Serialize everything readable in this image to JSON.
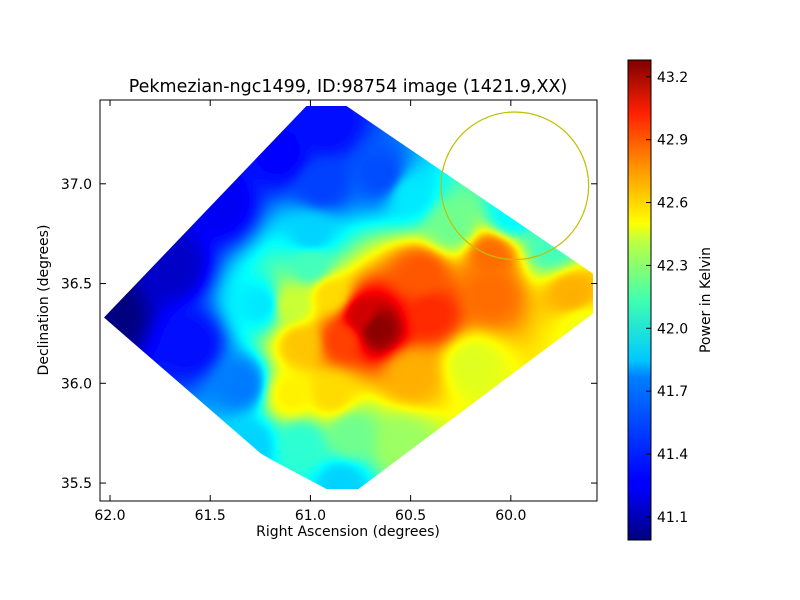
{
  "chart_data": {
    "type": "heatmap",
    "title": "Pekmezian-ngc1499, ID:98754 image (1421.9,XX)",
    "xlabel": "Right Ascension (degrees)",
    "ylabel": "Declination (degrees)",
    "colorbar_label": "Power in Kelvin",
    "colormap": "jet",
    "xlim": [
      62.05,
      59.57
    ],
    "ylim": [
      35.41,
      37.42
    ],
    "x_ticks": [
      {
        "value": 62.0,
        "label": "62.0"
      },
      {
        "value": 61.5,
        "label": "61.5"
      },
      {
        "value": 61.0,
        "label": "61.0"
      },
      {
        "value": 60.5,
        "label": "60.5"
      },
      {
        "value": 60.0,
        "label": "60.0"
      }
    ],
    "y_ticks": [
      {
        "value": 35.5,
        "label": "35.5"
      },
      {
        "value": 36.0,
        "label": "36.0"
      },
      {
        "value": 36.5,
        "label": "36.5"
      },
      {
        "value": 37.0,
        "label": "37.0"
      }
    ],
    "colorbar_range": [
      40.99,
      43.28
    ],
    "colorbar_ticks": [
      {
        "value": 41.1,
        "label": "41.1"
      },
      {
        "value": 41.4,
        "label": "41.4"
      },
      {
        "value": 41.7,
        "label": "41.7"
      },
      {
        "value": 42.0,
        "label": "42.0"
      },
      {
        "value": 42.3,
        "label": "42.3"
      },
      {
        "value": 42.6,
        "label": "42.6"
      },
      {
        "value": 42.9,
        "label": "42.9"
      },
      {
        "value": 43.2,
        "label": "43.2"
      }
    ],
    "coverage_polygon": [
      [
        62.03,
        36.33
      ],
      [
        61.02,
        37.39
      ],
      [
        60.82,
        37.39
      ],
      [
        59.59,
        36.55
      ],
      [
        59.59,
        36.35
      ],
      [
        60.76,
        35.47
      ],
      [
        60.92,
        35.47
      ],
      [
        61.2,
        35.62
      ],
      [
        61.25,
        35.65
      ]
    ],
    "field_points": [
      {
        "ra": 62.0,
        "dec": 36.35,
        "value": 40.99
      },
      {
        "ra": 61.7,
        "dec": 36.6,
        "value": 41.15
      },
      {
        "ra": 61.45,
        "dec": 36.9,
        "value": 41.25
      },
      {
        "ra": 61.15,
        "dec": 37.15,
        "value": 41.28
      },
      {
        "ra": 60.92,
        "dec": 37.3,
        "value": 41.3
      },
      {
        "ra": 60.95,
        "dec": 37.0,
        "value": 41.42
      },
      {
        "ra": 60.65,
        "dec": 37.05,
        "value": 41.45
      },
      {
        "ra": 60.5,
        "dec": 36.95,
        "value": 41.8
      },
      {
        "ra": 61.6,
        "dec": 36.2,
        "value": 41.3
      },
      {
        "ra": 61.35,
        "dec": 36.0,
        "value": 41.55
      },
      {
        "ra": 61.3,
        "dec": 35.7,
        "value": 41.75
      },
      {
        "ra": 61.25,
        "dec": 36.4,
        "value": 41.8
      },
      {
        "ra": 61.0,
        "dec": 36.75,
        "value": 41.75
      },
      {
        "ra": 61.0,
        "dec": 36.6,
        "value": 42.0
      },
      {
        "ra": 60.3,
        "dec": 36.8,
        "value": 42.1
      },
      {
        "ra": 60.0,
        "dec": 36.85,
        "value": 41.85
      },
      {
        "ra": 59.8,
        "dec": 36.7,
        "value": 42.0
      },
      {
        "ra": 61.1,
        "dec": 36.4,
        "value": 42.3
      },
      {
        "ra": 60.9,
        "dec": 36.45,
        "value": 42.5
      },
      {
        "ra": 61.05,
        "dec": 36.2,
        "value": 42.55
      },
      {
        "ra": 61.1,
        "dec": 35.95,
        "value": 42.45
      },
      {
        "ra": 60.75,
        "dec": 36.35,
        "value": 43.1
      },
      {
        "ra": 60.67,
        "dec": 36.28,
        "value": 43.25
      },
      {
        "ra": 60.85,
        "dec": 36.22,
        "value": 42.85
      },
      {
        "ra": 60.4,
        "dec": 36.35,
        "value": 42.9
      },
      {
        "ra": 60.45,
        "dec": 36.55,
        "value": 42.8
      },
      {
        "ra": 60.1,
        "dec": 36.65,
        "value": 42.75
      },
      {
        "ra": 60.1,
        "dec": 36.45,
        "value": 42.75
      },
      {
        "ra": 59.7,
        "dec": 36.45,
        "value": 42.6
      },
      {
        "ra": 59.65,
        "dec": 36.3,
        "value": 42.4
      },
      {
        "ra": 60.5,
        "dec": 36.05,
        "value": 42.6
      },
      {
        "ra": 60.2,
        "dec": 36.1,
        "value": 42.35
      },
      {
        "ra": 60.9,
        "dec": 35.95,
        "value": 42.5
      },
      {
        "ra": 60.8,
        "dec": 35.75,
        "value": 42.1
      },
      {
        "ra": 61.05,
        "dec": 35.7,
        "value": 41.95
      },
      {
        "ra": 60.85,
        "dec": 35.5,
        "value": 41.75
      },
      {
        "ra": 60.55,
        "dec": 35.7,
        "value": 42.2
      }
    ],
    "circle": {
      "ra": 59.98,
      "dec": 36.99,
      "radius_deg": 0.37,
      "color": "#bfbf00"
    },
    "grid": false
  }
}
